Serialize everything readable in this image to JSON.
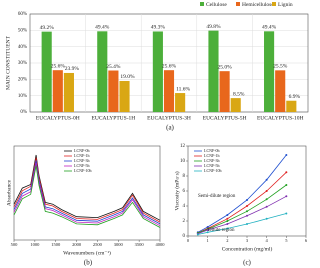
{
  "chart_data": [
    {
      "type": "bar",
      "caption": "(a)",
      "y_label": "MAIN CONSTITUENT",
      "categories": [
        "EUCALYPTUS-0H",
        "EUCALYPTUS-1H",
        "EUCALYPTUS-3H",
        "EUCALYPTUS-5H",
        "EUCALYPTUS-10H"
      ],
      "series": [
        {
          "name": "Cellulose",
          "color": "#4caf3a",
          "values": [
            49.2,
            49.4,
            49.3,
            49.8,
            49.4
          ],
          "value_labels": [
            "49.2%",
            "49.4%",
            "49.3%",
            "49.8%",
            "49.4%"
          ]
        },
        {
          "name": "Hemicellulose",
          "color": "#e8671c",
          "values": [
            25.6,
            25.4,
            25.6,
            25.0,
            25.5
          ],
          "value_labels": [
            "25.6%",
            "25.4%",
            "25.6%",
            "25.0%",
            "25.5%"
          ]
        },
        {
          "name": "Lignin",
          "color": "#d9a714",
          "values": [
            23.9,
            19.0,
            11.6,
            8.5,
            6.9
          ],
          "value_labels": [
            "23.9%",
            "19.0%",
            "11.6%",
            "8.5%",
            "6.9%"
          ]
        }
      ],
      "ylim": [
        0,
        60
      ],
      "yticks": [
        {
          "value": 0,
          "label": "0%"
        },
        {
          "value": 10,
          "label": "10%"
        },
        {
          "value": 20,
          "label": "20%"
        },
        {
          "value": 30,
          "label": "30%"
        },
        {
          "value": 40,
          "label": "40%"
        },
        {
          "value": 50,
          "label": "50%"
        },
        {
          "value": 60,
          "label": "60%"
        }
      ]
    },
    {
      "type": "line",
      "caption": "(b)",
      "x_label": "Wavenumbers (cm⁻¹)",
      "y_label": "Absorbance",
      "x": [
        500,
        700,
        900,
        1030,
        1100,
        1250,
        1430,
        1640,
        2000,
        2500,
        2900,
        3100,
        3340,
        3600,
        4000
      ],
      "series": [
        {
          "name": "LCNF-0h",
          "color": "#111111",
          "values": [
            0.4,
            0.58,
            0.62,
            0.95,
            0.72,
            0.42,
            0.4,
            0.34,
            0.26,
            0.25,
            0.32,
            0.36,
            0.52,
            0.32,
            0.22
          ]
        },
        {
          "name": "LCNF-1h",
          "color": "#e02020",
          "values": [
            0.37,
            0.55,
            0.6,
            0.92,
            0.7,
            0.4,
            0.38,
            0.32,
            0.24,
            0.23,
            0.3,
            0.34,
            0.5,
            0.3,
            0.2
          ]
        },
        {
          "name": "LCNF-3h",
          "color": "#2040d0",
          "values": [
            0.34,
            0.52,
            0.57,
            0.89,
            0.67,
            0.37,
            0.35,
            0.3,
            0.22,
            0.21,
            0.28,
            0.32,
            0.47,
            0.28,
            0.18
          ]
        },
        {
          "name": "LCNF-5h",
          "color": "#c020c0",
          "values": [
            0.31,
            0.49,
            0.54,
            0.86,
            0.64,
            0.35,
            0.33,
            0.28,
            0.2,
            0.19,
            0.26,
            0.3,
            0.45,
            0.26,
            0.16
          ]
        },
        {
          "name": "LCNF-10h",
          "color": "#20a020",
          "values": [
            0.28,
            0.46,
            0.51,
            0.83,
            0.61,
            0.32,
            0.3,
            0.26,
            0.18,
            0.17,
            0.24,
            0.28,
            0.42,
            0.24,
            0.14
          ]
        }
      ],
      "xlim": [
        500,
        4000
      ],
      "xticks": [
        500,
        1000,
        1500,
        2000,
        2500,
        3000,
        3500,
        4000
      ],
      "ylim": [
        0,
        1.05
      ]
    },
    {
      "type": "line",
      "caption": "(c)",
      "x_label": "Concentration (mg/ml)",
      "y_label": "Viscosity (mPa·s)",
      "annotations": [
        "Semi-dilute region",
        "Dilute region"
      ],
      "x": [
        0.5,
        1,
        2,
        3,
        4,
        5
      ],
      "series": [
        {
          "name": "LCNF-0h",
          "color": "#2050d0",
          "values": [
            0.5,
            1.2,
            2.8,
            4.8,
            7.5,
            10.8
          ]
        },
        {
          "name": "LCNF-1h",
          "color": "#e02020",
          "values": [
            0.4,
            1.0,
            2.3,
            4.0,
            6.0,
            8.5
          ]
        },
        {
          "name": "LCNF-3h",
          "color": "#20a020",
          "values": [
            0.4,
            0.9,
            2.0,
            3.3,
            4.9,
            6.8
          ]
        },
        {
          "name": "LCNF-5h",
          "color": "#8030b0",
          "values": [
            0.3,
            0.8,
            1.6,
            2.7,
            3.9,
            5.3
          ]
        },
        {
          "name": "LCNF-10h",
          "color": "#20b0c0",
          "values": [
            0.2,
            0.5,
            1.0,
            1.6,
            2.3,
            3.0
          ]
        }
      ],
      "xlim": [
        0,
        6
      ],
      "xticks": [
        0,
        1,
        2,
        3,
        4,
        5,
        6
      ],
      "ylim": [
        0,
        12
      ],
      "yticks": [
        0,
        2,
        4,
        6,
        8,
        10,
        12
      ]
    }
  ]
}
